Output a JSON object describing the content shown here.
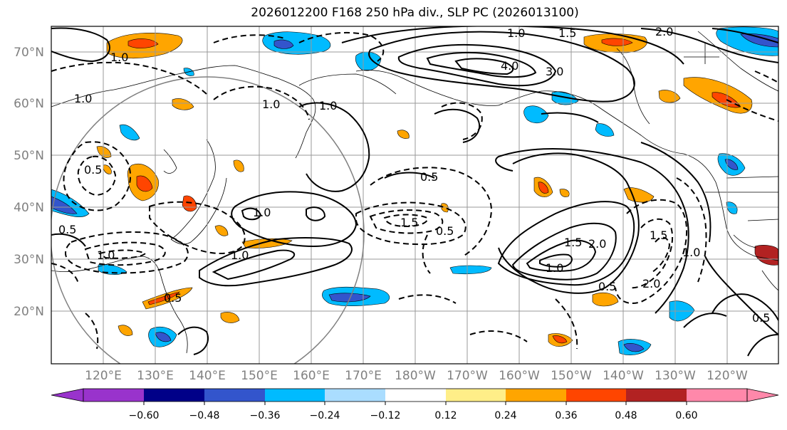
{
  "title": "2026012200 F168 250 hPa div., SLP PC (2026013100)",
  "lat_labels": [
    "70°N",
    "60°N",
    "50°N",
    "40°N",
    "30°N",
    "20°N"
  ],
  "lon_labels": [
    "120°E",
    "130°E",
    "140°E",
    "150°E",
    "160°E",
    "170°E",
    "180°W",
    "170°W",
    "160°W",
    "150°W",
    "140°W",
    "130°W",
    "120°W"
  ],
  "colorbar": {
    "colors": [
      "#9933cc",
      "#000088",
      "#3355cc",
      "#00bbff",
      "#aaddff",
      "#ffffff",
      "#ffee88",
      "#ffa500",
      "#ff4500",
      "#b22222",
      "#ff88aa"
    ],
    "tick_labels": [
      "−0.60",
      "−0.48",
      "−0.36",
      "−0.24",
      "−0.12",
      "0.12",
      "0.24",
      "0.36",
      "0.48",
      "0.60"
    ]
  },
  "contour_labels": {
    "north_pacific_positive": [
      "4.0",
      "3.0",
      "1.5",
      "1.0",
      "2.0",
      "1.0"
    ],
    "subtropical_positive": [
      "2.0",
      "1.5",
      "1.0",
      "0.5"
    ],
    "west_pacific": [
      "1.0",
      "1.0",
      "1.0",
      "0.5",
      "1.0"
    ],
    "negative": [
      "1.0",
      "1.5",
      "0.5",
      "0.5",
      "1.5",
      "1.0",
      "2.0",
      "0.5",
      "0.5",
      "0.5",
      "1.0"
    ]
  }
}
